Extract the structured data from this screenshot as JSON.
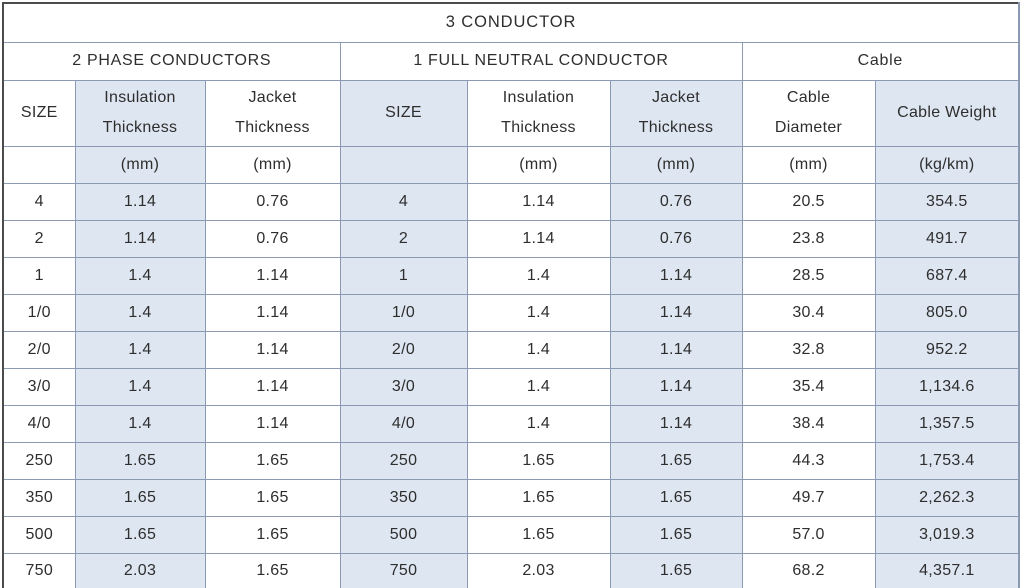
{
  "table": {
    "title": "3 CONDUCTOR",
    "sections": [
      {
        "label": "2 PHASE CONDUCTORS"
      },
      {
        "label": "1 FULL NEUTRAL CONDUCTOR"
      },
      {
        "label": "Cable"
      }
    ],
    "columns": [
      {
        "line1": "SIZE",
        "line2": "",
        "unit": ""
      },
      {
        "line1": "Insulation",
        "line2": "Thickness",
        "unit": "(mm)"
      },
      {
        "line1": "Jacket",
        "line2": "Thickness",
        "unit": "(mm)"
      },
      {
        "line1": "SIZE",
        "line2": "",
        "unit": ""
      },
      {
        "line1": "Insulation",
        "line2": "Thickness",
        "unit": "(mm)"
      },
      {
        "line1": "Jacket",
        "line2": "Thickness",
        "unit": "(mm)"
      },
      {
        "line1": "Cable",
        "line2": "Diameter",
        "unit": "(mm)"
      },
      {
        "line1": "Cable Weight",
        "line2": "",
        "unit": "(kg/km)"
      }
    ],
    "rows": [
      [
        "4",
        "1.14",
        "0.76",
        "4",
        "1.14",
        "0.76",
        "20.5",
        "354.5"
      ],
      [
        "2",
        "1.14",
        "0.76",
        "2",
        "1.14",
        "0.76",
        "23.8",
        "491.7"
      ],
      [
        "1",
        "1.4",
        "1.14",
        "1",
        "1.4",
        "1.14",
        "28.5",
        "687.4"
      ],
      [
        "1/0",
        "1.4",
        "1.14",
        "1/0",
        "1.4",
        "1.14",
        "30.4",
        "805.0"
      ],
      [
        "2/0",
        "1.4",
        "1.14",
        "2/0",
        "1.4",
        "1.14",
        "32.8",
        "952.2"
      ],
      [
        "3/0",
        "1.4",
        "1.14",
        "3/0",
        "1.4",
        "1.14",
        "35.4",
        "1,134.6"
      ],
      [
        "4/0",
        "1.4",
        "1.14",
        "4/0",
        "1.4",
        "1.14",
        "38.4",
        "1,357.5"
      ],
      [
        "250",
        "1.65",
        "1.65",
        "250",
        "1.65",
        "1.65",
        "44.3",
        "1,753.4"
      ],
      [
        "350",
        "1.65",
        "1.65",
        "350",
        "1.65",
        "1.65",
        "49.7",
        "2,262.3"
      ],
      [
        "500",
        "1.65",
        "1.65",
        "500",
        "1.65",
        "1.65",
        "57.0",
        "3,019.3"
      ],
      [
        "750",
        "2.03",
        "1.65",
        "750",
        "2.03",
        "1.65",
        "68.2",
        "4,357.1"
      ]
    ],
    "colors": {
      "shaded_cell": "#dee6f1",
      "grid_line": "#8b99b2",
      "outer_border": "#4c4c4c",
      "text": "#2e2e2e"
    }
  }
}
